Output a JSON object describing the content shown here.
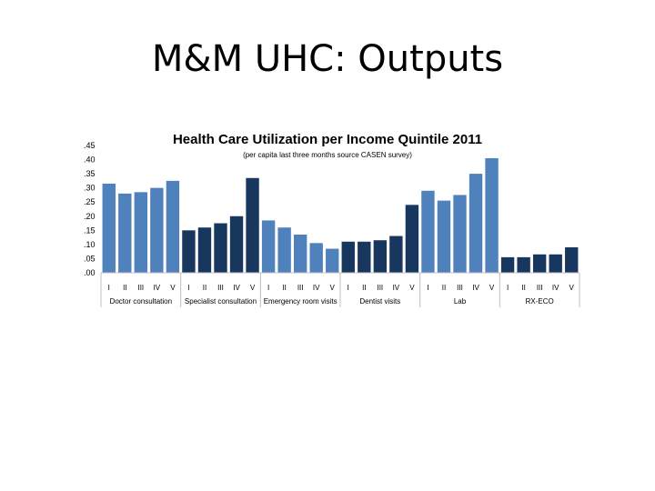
{
  "slide": {
    "title": "M&M UHC: Outputs"
  },
  "chart_data": {
    "type": "bar",
    "title": "Health Care Utilization per Income Quintile 2011",
    "subtitle": "(per capita last three months source CASEN survey)",
    "xlabel": "",
    "ylabel": "",
    "ylim": [
      0,
      0.45
    ],
    "yticks": [
      0,
      0.05,
      0.1,
      0.15,
      0.2,
      0.25,
      0.3,
      0.35,
      0.4,
      0.45
    ],
    "ytick_labels": [
      ".00",
      ".05",
      ".10",
      ".15",
      ".20",
      ".25",
      ".30",
      ".35",
      ".40",
      ".45"
    ],
    "grid": false,
    "legend": "none",
    "quintile_labels": [
      "I",
      "II",
      "III",
      "IV",
      "V"
    ],
    "groups": [
      {
        "label": "Doctor consultation",
        "color": "#4f81bd",
        "values": [
          0.315,
          0.28,
          0.285,
          0.3,
          0.325
        ]
      },
      {
        "label": "Specialist consultation",
        "color": "#17375e",
        "values": [
          0.15,
          0.16,
          0.175,
          0.2,
          0.335
        ]
      },
      {
        "label": "Emergency room visits",
        "color": "#4f81bd",
        "values": [
          0.185,
          0.16,
          0.135,
          0.105,
          0.085
        ]
      },
      {
        "label": "Dentist visits",
        "color": "#17375e",
        "values": [
          0.11,
          0.11,
          0.115,
          0.13,
          0.24
        ]
      },
      {
        "label": "Lab",
        "color": "#4f81bd",
        "values": [
          0.29,
          0.255,
          0.275,
          0.35,
          0.405
        ]
      },
      {
        "label": "RX-ECO",
        "color": "#17375e",
        "values": [
          0.055,
          0.055,
          0.065,
          0.065,
          0.09
        ]
      }
    ]
  }
}
